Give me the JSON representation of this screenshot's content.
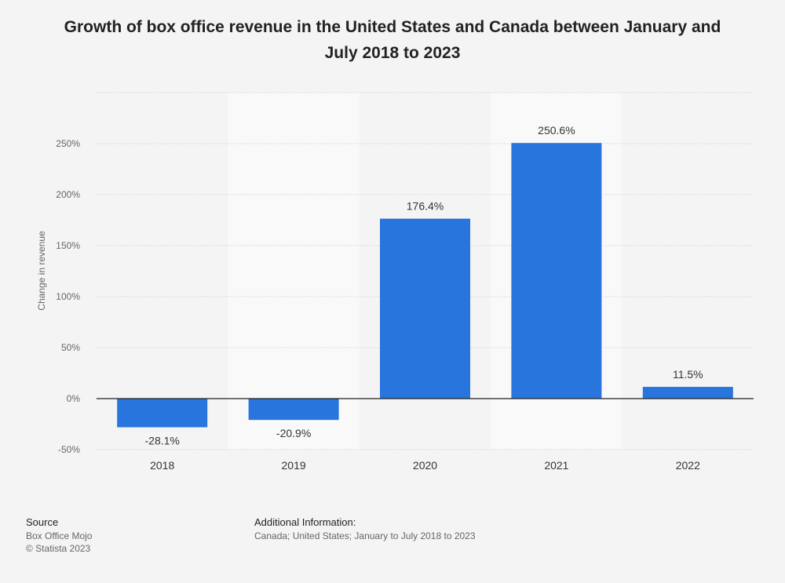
{
  "chart_data": {
    "type": "bar",
    "title": "Growth of box office revenue in the United States and Canada between January and July 2018 to 2023",
    "categories": [
      "2018",
      "2019",
      "2020",
      "2021",
      "2022"
    ],
    "values": [
      -28.1,
      -20.9,
      176.4,
      250.6,
      11.5
    ],
    "value_labels": [
      "-28.1%",
      "-20.9%",
      "176.4%",
      "250.6%",
      "11.5%"
    ],
    "xlabel": "",
    "ylabel": "Change in revenue",
    "ylim": [
      -50,
      300
    ],
    "yticks": [
      -50,
      0,
      50,
      100,
      150,
      200,
      250
    ],
    "ytick_labels": [
      "-50%",
      "0%",
      "50%",
      "100%",
      "150%",
      "200%",
      "250%"
    ],
    "grid": true,
    "bar_color": "#2875de"
  },
  "footer": {
    "source_heading": "Source",
    "source_lines": [
      "Box Office Mojo",
      "© Statista 2023"
    ],
    "info_heading": "Additional Information:",
    "info_text": "Canada; United States; January to July 2018 to 2023"
  }
}
